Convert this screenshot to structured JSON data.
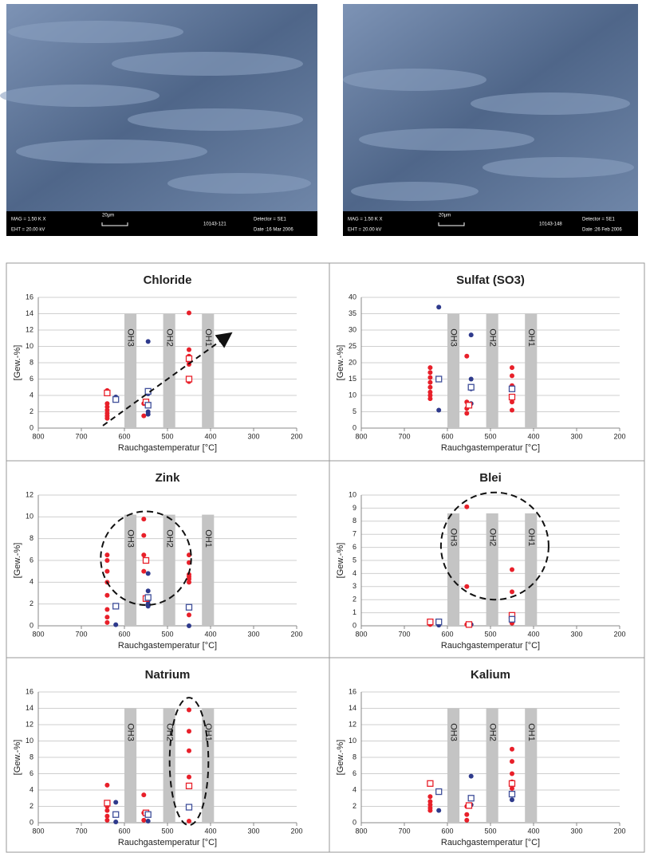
{
  "images": [
    {
      "labels": [
        "MAG = 1.50 K X",
        "EHT = 20.00 kV",
        "20µm",
        "10143-121",
        "Detector = SE1",
        "Date :16 Mar 2006"
      ]
    },
    {
      "labels": [
        "MAG = 1.50 K X",
        "EHT = 20.00 kV",
        "20µm",
        "10143-148",
        "Detector = SE1",
        "Date :26 Feb 2006"
      ]
    }
  ],
  "chart_data": [
    {
      "type": "scatter",
      "title": "Chloride",
      "x_label": "Rauchgastemperatur [°C]",
      "y_label": "[Gew.-%]",
      "xlim": [
        800,
        200
      ],
      "xticks": [
        800,
        700,
        600,
        500,
        400,
        300,
        200
      ],
      "ylim": [
        0,
        16
      ],
      "yticks": [
        0,
        2,
        4,
        6,
        8,
        10,
        12,
        14,
        16
      ],
      "grid": true,
      "bands": [
        {
          "label": "OH3",
          "from": 600,
          "to": 572,
          "top": 14
        },
        {
          "label": "OH2",
          "from": 510,
          "to": 482,
          "top": 14
        },
        {
          "label": "OH1",
          "from": 420,
          "to": 392,
          "top": 14
        }
      ],
      "arrow": {
        "from": [
          650,
          0.3
        ],
        "to": [
          355,
          11.5
        ]
      },
      "series": [
        {
          "marker": "circle",
          "color": "#e8202a",
          "x": [
            640,
            640,
            640,
            640,
            640,
            640,
            640,
            555,
            555,
            450,
            450,
            450,
            450,
            450,
            450,
            450
          ],
          "values": [
            4.6,
            3.0,
            2.6,
            2.2,
            1.8,
            1.5,
            1.2,
            1.5,
            3.0,
            14.1,
            9.6,
            8.8,
            8.2,
            7.8,
            6.0,
            5.7
          ]
        },
        {
          "marker": "circle",
          "color": "#2e3a8c",
          "x": [
            620,
            545,
            545,
            545,
            545,
            545
          ],
          "values": [
            3.8,
            10.6,
            4.2,
            3.0,
            2.0,
            1.7
          ]
        },
        {
          "marker": "square",
          "color": "#e8202a",
          "x": [
            640,
            550,
            450,
            450
          ],
          "values": [
            4.3,
            3.2,
            6.0,
            8.5
          ]
        },
        {
          "marker": "square",
          "color": "#3f4f9a",
          "x": [
            620,
            545,
            545
          ],
          "values": [
            3.5,
            4.5,
            2.8
          ]
        }
      ]
    },
    {
      "type": "scatter",
      "title": "Sulfat (SO3)",
      "x_label": "Rauchgastemperatur [°C]",
      "y_label": "[Gew.-%]",
      "xlim": [
        800,
        200
      ],
      "xticks": [
        800,
        700,
        600,
        500,
        400,
        300,
        200
      ],
      "ylim": [
        0,
        40
      ],
      "yticks": [
        0,
        5,
        10,
        15,
        20,
        25,
        30,
        35,
        40
      ],
      "grid": true,
      "bands": [
        {
          "label": "OH3",
          "from": 600,
          "to": 572,
          "top": 35
        },
        {
          "label": "OH2",
          "from": 510,
          "to": 482,
          "top": 35
        },
        {
          "label": "OH1",
          "from": 420,
          "to": 392,
          "top": 35
        }
      ],
      "series": [
        {
          "marker": "circle",
          "color": "#e8202a",
          "x": [
            640,
            640,
            640,
            640,
            640,
            640,
            640,
            640,
            555,
            555,
            555,
            555,
            450,
            450,
            450,
            450,
            450
          ],
          "values": [
            18.5,
            17,
            15.5,
            14,
            12.5,
            11,
            10,
            9,
            22,
            8,
            6,
            4.5,
            18.5,
            16,
            13,
            8,
            5.5
          ]
        },
        {
          "marker": "circle",
          "color": "#2e3a8c",
          "x": [
            620,
            620,
            545,
            545,
            545,
            545
          ],
          "values": [
            37,
            5.5,
            28.5,
            15,
            12,
            7.5
          ]
        },
        {
          "marker": "square",
          "color": "#e8202a",
          "x": [
            550,
            450
          ],
          "values": [
            7,
            9.5
          ]
        },
        {
          "marker": "square",
          "color": "#3f4f9a",
          "x": [
            620,
            545,
            450
          ],
          "values": [
            15,
            12.5,
            12
          ]
        }
      ]
    },
    {
      "type": "scatter",
      "title": "Zink",
      "x_label": "Rauchgastemperatur [°C]",
      "y_label": "[Gew.-%]",
      "xlim": [
        800,
        200
      ],
      "xticks": [
        800,
        700,
        600,
        500,
        400,
        300,
        200
      ],
      "ylim": [
        0,
        12
      ],
      "yticks": [
        0,
        2,
        4,
        6,
        8,
        10,
        12
      ],
      "grid": true,
      "bands": [
        {
          "label": "OH3",
          "from": 600,
          "to": 572,
          "top": 10.2
        },
        {
          "label": "OH2",
          "from": 510,
          "to": 482,
          "top": 10.2
        },
        {
          "label": "OH1",
          "from": 420,
          "to": 392,
          "top": 10.2
        }
      ],
      "ellipse": {
        "center": [
          550,
          6.2
        ],
        "rx": 105,
        "ry": 4.3
      },
      "series": [
        {
          "marker": "circle",
          "color": "#e8202a",
          "x": [
            640,
            640,
            640,
            640,
            640,
            640,
            640,
            640,
            555,
            555,
            555,
            555,
            450,
            450,
            450,
            450,
            450,
            450,
            450
          ],
          "values": [
            6.5,
            6.0,
            5.0,
            4.0,
            2.8,
            1.5,
            0.8,
            0.3,
            9.8,
            8.3,
            6.5,
            5.0,
            6.5,
            5.8,
            4.7,
            4.5,
            4.3,
            4.0,
            1.0
          ]
        },
        {
          "marker": "circle",
          "color": "#2e3a8c",
          "x": [
            620,
            620,
            545,
            545,
            545,
            545,
            545,
            450
          ],
          "values": [
            1.8,
            0.1,
            4.8,
            3.2,
            2.3,
            2.0,
            1.8,
            0
          ]
        },
        {
          "marker": "square",
          "color": "#e8202a",
          "x": [
            550,
            550
          ],
          "values": [
            6.0,
            2.5
          ]
        },
        {
          "marker": "square",
          "color": "#3f4f9a",
          "x": [
            620,
            545,
            450
          ],
          "values": [
            1.8,
            2.6,
            1.7
          ]
        }
      ]
    },
    {
      "type": "scatter",
      "title": "Blei",
      "x_label": "Rauchgastemperatur [°C]",
      "y_label": "[Gew.-%]",
      "xlim": [
        800,
        200
      ],
      "xticks": [
        800,
        700,
        600,
        500,
        400,
        300,
        200
      ],
      "ylim": [
        0,
        10
      ],
      "yticks": [
        0,
        1,
        2,
        3,
        4,
        5,
        6,
        7,
        8,
        9,
        10
      ],
      "grid": true,
      "bands": [
        {
          "label": "OH3",
          "from": 600,
          "to": 572,
          "top": 8.6
        },
        {
          "label": "OH2",
          "from": 510,
          "to": 482,
          "top": 8.6
        },
        {
          "label": "OH1",
          "from": 420,
          "to": 392,
          "top": 8.6
        }
      ],
      "ellipse": {
        "center": [
          490,
          6.1
        ],
        "rx": 125,
        "ry": 4.1
      },
      "series": [
        {
          "marker": "circle",
          "color": "#e8202a",
          "x": [
            640,
            555,
            555,
            555,
            450,
            450,
            450,
            450
          ],
          "values": [
            0.1,
            9.1,
            3.0,
            0.1,
            4.3,
            2.6,
            0.5,
            0.2
          ]
        },
        {
          "marker": "circle",
          "color": "#2e3a8c",
          "x": [
            620,
            550,
            545
          ],
          "values": [
            0.05,
            0.05,
            0.1
          ]
        },
        {
          "marker": "square",
          "color": "#e8202a",
          "x": [
            640,
            550,
            450
          ],
          "values": [
            0.3,
            0.1,
            0.8
          ]
        },
        {
          "marker": "square",
          "color": "#3f4f9a",
          "x": [
            620,
            450
          ],
          "values": [
            0.3,
            0.5
          ]
        }
      ]
    },
    {
      "type": "scatter",
      "title": "Natrium",
      "x_label": "Rauchgastemperatur [°C]",
      "y_label": "[Gew.-%]",
      "xlim": [
        800,
        200
      ],
      "xticks": [
        800,
        700,
        600,
        500,
        400,
        300,
        200
      ],
      "ylim": [
        0,
        16
      ],
      "yticks": [
        0,
        2,
        4,
        6,
        8,
        10,
        12,
        14,
        16
      ],
      "grid": true,
      "bands": [
        {
          "label": "OH3",
          "from": 600,
          "to": 572,
          "top": 14
        },
        {
          "label": "OH2",
          "from": 510,
          "to": 482,
          "top": 14
        },
        {
          "label": "OH1",
          "from": 420,
          "to": 392,
          "top": 14
        }
      ],
      "ellipse": {
        "center": [
          450,
          7.5
        ],
        "rx": 45,
        "ry": 7.8
      },
      "series": [
        {
          "marker": "circle",
          "color": "#e8202a",
          "x": [
            640,
            640,
            640,
            640,
            640,
            555,
            555,
            555,
            450,
            450,
            450,
            450,
            450
          ],
          "values": [
            4.6,
            2.0,
            1.5,
            0.8,
            0.3,
            3.4,
            1.2,
            0.3,
            13.8,
            11.2,
            8.8,
            5.6,
            0.2
          ]
        },
        {
          "marker": "circle",
          "color": "#2e3a8c",
          "x": [
            620,
            620,
            545,
            545
          ],
          "values": [
            2.5,
            0.1,
            1.0,
            0.2
          ]
        },
        {
          "marker": "square",
          "color": "#e8202a",
          "x": [
            640,
            550,
            450
          ],
          "values": [
            2.4,
            1.2,
            4.5
          ]
        },
        {
          "marker": "square",
          "color": "#3f4f9a",
          "x": [
            620,
            545,
            450
          ],
          "values": [
            1.0,
            1.0,
            1.9
          ]
        }
      ]
    },
    {
      "type": "scatter",
      "title": "Kalium",
      "x_label": "Rauchgastemperatur [°C]",
      "y_label": "[Gew.-%]",
      "xlim": [
        800,
        200
      ],
      "xticks": [
        800,
        700,
        600,
        500,
        400,
        300,
        200
      ],
      "ylim": [
        0,
        16
      ],
      "yticks": [
        0,
        2,
        4,
        6,
        8,
        10,
        12,
        14,
        16
      ],
      "grid": true,
      "bands": [
        {
          "label": "OH3",
          "from": 600,
          "to": 572,
          "top": 14
        },
        {
          "label": "OH2",
          "from": 510,
          "to": 482,
          "top": 14
        },
        {
          "label": "OH1",
          "from": 420,
          "to": 392,
          "top": 14
        }
      ],
      "series": [
        {
          "marker": "circle",
          "color": "#e8202a",
          "x": [
            640,
            640,
            640,
            640,
            640,
            555,
            555,
            555,
            450,
            450,
            450,
            450,
            450
          ],
          "values": [
            3.2,
            2.6,
            2.2,
            1.8,
            1.5,
            2.0,
            1.0,
            0.3,
            9.0,
            7.5,
            6.0,
            5.0,
            4.2
          ]
        },
        {
          "marker": "circle",
          "color": "#2e3a8c",
          "x": [
            620,
            545,
            545,
            450
          ],
          "values": [
            1.5,
            5.7,
            2.2,
            2.8
          ]
        },
        {
          "marker": "square",
          "color": "#e8202a",
          "x": [
            640,
            550,
            450
          ],
          "values": [
            4.8,
            2.1,
            4.8
          ]
        },
        {
          "marker": "square",
          "color": "#3f4f9a",
          "x": [
            620,
            545,
            450
          ],
          "values": [
            3.8,
            3.0,
            3.5
          ]
        }
      ]
    }
  ]
}
